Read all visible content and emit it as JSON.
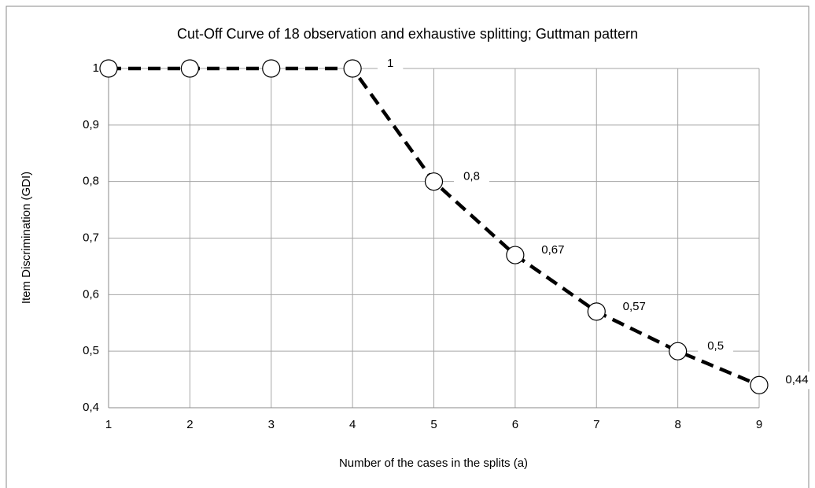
{
  "chart_data": {
    "type": "line",
    "title": "Cut-Off Curve of 18 observation and exhaustive splitting; Guttman pattern",
    "x_label": "Number of the cases in the splits  (a)",
    "y_label": "Item Discrimination (GDI)",
    "x": [
      1,
      2,
      3,
      4,
      5,
      6,
      7,
      8,
      9
    ],
    "series": [
      {
        "name": null,
        "color": "#000000",
        "values": [
          1,
          1,
          1,
          1,
          0.8,
          0.67,
          0.57,
          0.5,
          0.44
        ],
        "value_labels": [
          null,
          null,
          null,
          "1",
          "0,8",
          "0,67",
          "0,57",
          "0,5",
          "0,44"
        ]
      }
    ],
    "xlim": [
      1,
      9
    ],
    "xticks": [
      1,
      2,
      3,
      4,
      5,
      6,
      7,
      8,
      9
    ],
    "ylim": [
      0.4,
      1
    ],
    "yticks": [
      {
        "value": 0.4,
        "label": "0,4"
      },
      {
        "value": 0.5,
        "label": "0,5"
      },
      {
        "value": 0.6,
        "label": "0,6"
      },
      {
        "value": 0.7,
        "label": "0,7"
      },
      {
        "value": 0.8,
        "label": "0,8"
      },
      {
        "value": 0.9,
        "label": "0,9"
      },
      1
    ],
    "grid": true
  }
}
